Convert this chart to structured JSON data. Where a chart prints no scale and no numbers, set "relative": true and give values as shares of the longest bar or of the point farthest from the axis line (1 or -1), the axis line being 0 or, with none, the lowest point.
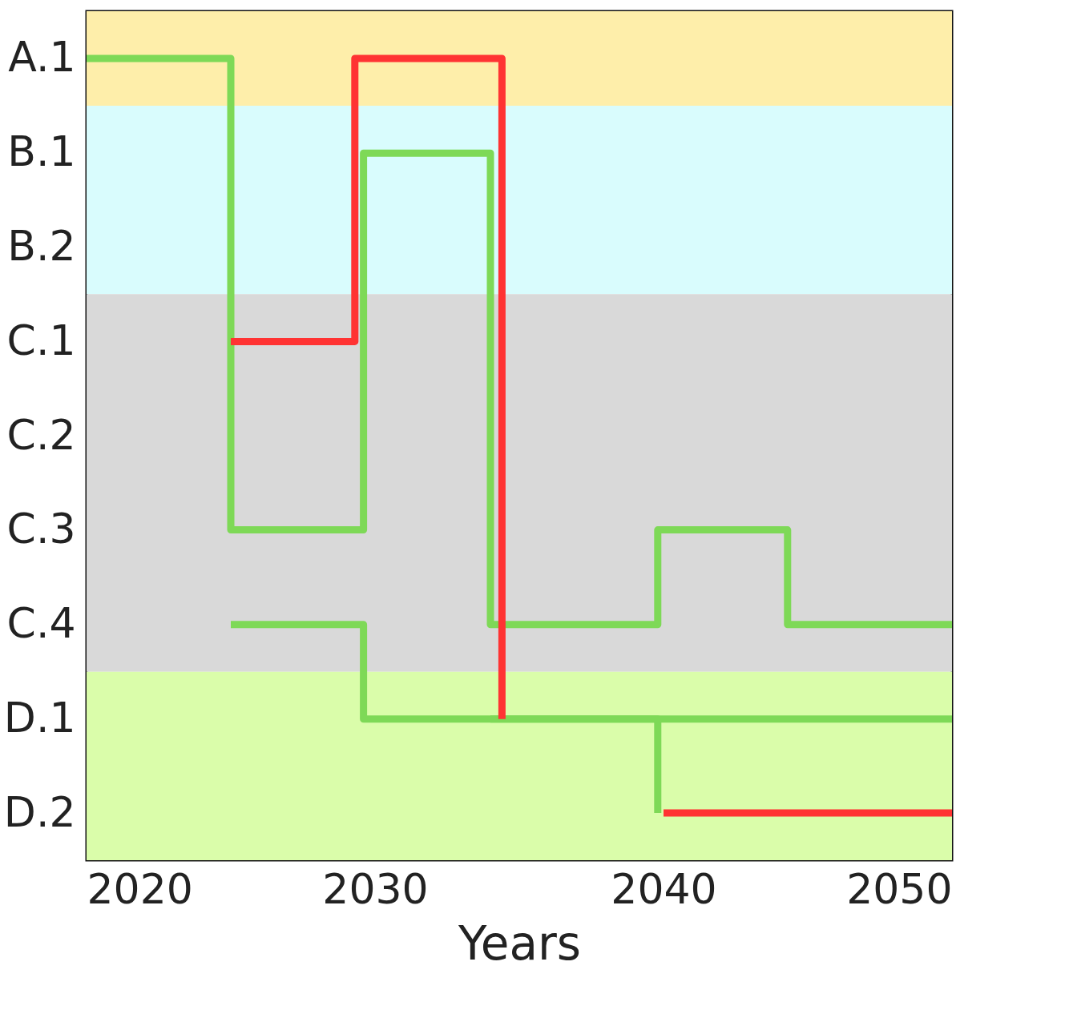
{
  "chart_data": {
    "type": "step",
    "xlabel": "Years",
    "relative": true,
    "y_categories": [
      "A.1",
      "B.1",
      "B.2",
      "C.1",
      "C.2",
      "C.3",
      "C.4",
      "D.1",
      "D.2"
    ],
    "xlim": [
      2020,
      2050
    ],
    "xticks": [
      2020,
      2030,
      2040,
      2050
    ],
    "grid": false,
    "marker": "none",
    "line_style": "solid",
    "bands": [
      {
        "axis": "y",
        "from": 0.941,
        "to": 1.059,
        "color": "#feeeaa"
      },
      {
        "axis": "y",
        "from": 0.706,
        "to": 0.941,
        "color": "#d9fcfd"
      },
      {
        "axis": "y",
        "from": 0.235,
        "to": 0.706,
        "color": "#d9d9d9"
      },
      {
        "axis": "y",
        "from": 0,
        "to": 0.235,
        "color": "#dafdaa"
      }
    ],
    "series": [
      {
        "color": "#7ed957",
        "x": [
          2020,
          2025,
          2029.6,
          2034,
          2039.8,
          2044.3,
          2050
        ],
        "values": [
          1,
          0.412,
          0.882,
          0.294,
          0.412,
          0.294,
          0.294
        ]
      },
      {
        "color": "#7ed957",
        "x": [
          2025,
          2029.6,
          2039.8
        ],
        "values": [
          0.294,
          0.176,
          0.059
        ]
      },
      {
        "color": "#7ed957",
        "x": [
          2034,
          2050
        ],
        "values": [
          0.176,
          0.176
        ]
      },
      {
        "color": "#ff3333",
        "x": [
          2025,
          2029.3,
          2034.4
        ],
        "values": [
          0.647,
          1,
          0.176
        ]
      },
      {
        "color": "#ff3333",
        "x": [
          2040,
          2050
        ],
        "values": [
          0.059,
          0.059
        ]
      }
    ]
  }
}
